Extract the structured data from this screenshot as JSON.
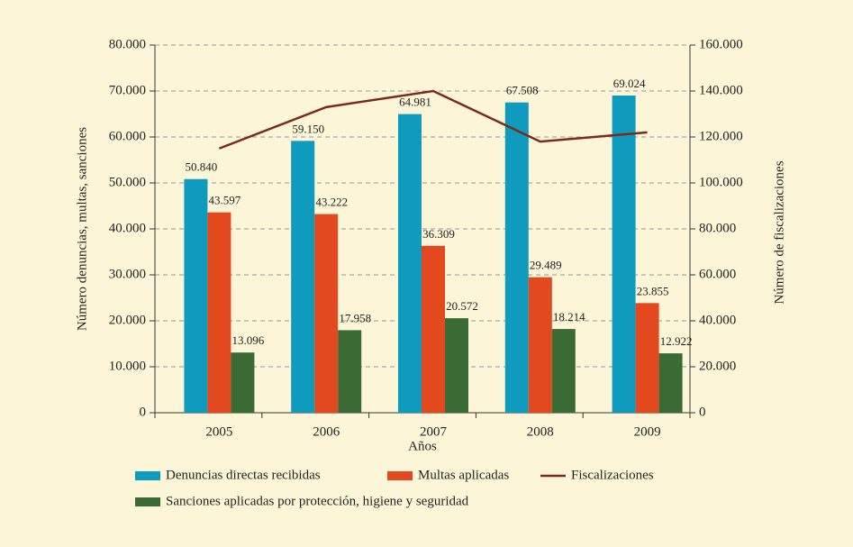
{
  "chart_data": {
    "type": "bar",
    "x_label": "Años",
    "y_label": "Número denuncias, multas, sanciones",
    "y2_label": "Número de fiscalizaciones",
    "categories": [
      "2005",
      "2006",
      "2007",
      "2008",
      "2009"
    ],
    "series": [
      {
        "name": "Denuncias directas recibidas",
        "type": "bar",
        "color": "#0e9bbd",
        "values": [
          50840,
          59150,
          64981,
          67508,
          69024
        ],
        "value_labels": [
          "50.840",
          "59.150",
          "64.981",
          "67.508",
          "69.024"
        ]
      },
      {
        "name": "Multas aplicadas",
        "type": "bar",
        "color": "#e2491f",
        "values": [
          43597,
          43222,
          36309,
          29489,
          23855
        ],
        "value_labels": [
          "43.597",
          "43.222",
          "36.309",
          "29.489",
          "23.855"
        ]
      },
      {
        "name": "Fiscalizaciones",
        "type": "line",
        "axis": "y2",
        "color": "#7b2a1e",
        "values": [
          115000,
          133000,
          140000,
          118000,
          122000
        ]
      },
      {
        "name": "Sanciones aplicadas por protección, higiene y seguridad",
        "type": "bar",
        "color": "#3a6b35",
        "values": [
          13096,
          17958,
          20572,
          18214,
          12922
        ],
        "value_labels": [
          "13.096",
          "17.958",
          "20.572",
          "18.214",
          "12.922"
        ]
      }
    ],
    "ylim": [
      0,
      80000
    ],
    "yticks": [
      0,
      {
        "value": 10000,
        "label": "10.000"
      },
      {
        "value": 20000,
        "label": "20.000"
      },
      {
        "value": 30000,
        "label": "30.000"
      },
      {
        "value": 40000,
        "label": "40.000"
      },
      {
        "value": 50000,
        "label": "50.000"
      },
      {
        "value": 60000,
        "label": "60.000"
      },
      {
        "value": 70000,
        "label": "70.000"
      },
      {
        "value": 80000,
        "label": "80.000"
      }
    ],
    "y2lim": [
      0,
      160000
    ],
    "y2ticks": [
      0,
      {
        "value": 20000,
        "label": "20.000"
      },
      {
        "value": 40000,
        "label": "40.000"
      },
      {
        "value": 60000,
        "label": "60.000"
      },
      {
        "value": 80000,
        "label": "80.000"
      },
      {
        "value": 100000,
        "label": "100.000"
      },
      {
        "value": 120000,
        "label": "120.000"
      },
      {
        "value": 140000,
        "label": "140.000"
      },
      {
        "value": 160000,
        "label": "160.000"
      }
    ],
    "grid": true
  }
}
